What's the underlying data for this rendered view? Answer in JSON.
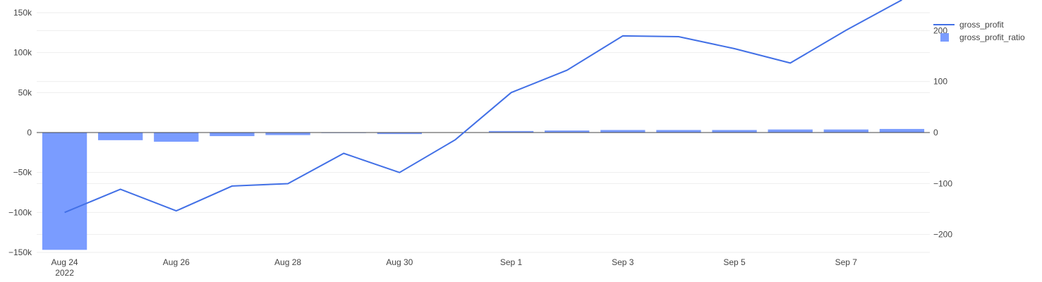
{
  "chart_data": {
    "type": "bar+line",
    "x": [
      "2022-08-24",
      "2022-08-25",
      "2022-08-26",
      "2022-08-27",
      "2022-08-28",
      "2022-08-29",
      "2022-08-30",
      "2022-08-31",
      "2022-09-01",
      "2022-09-02",
      "2022-09-03",
      "2022-09-04",
      "2022-09-05",
      "2022-09-06",
      "2022-09-07",
      "2022-09-08"
    ],
    "x_ticks": [
      {
        "date": "2022-08-24",
        "label": "Aug 24",
        "sublabel": "2022"
      },
      {
        "date": "2022-08-26",
        "label": "Aug 26",
        "sublabel": ""
      },
      {
        "date": "2022-08-28",
        "label": "Aug 28",
        "sublabel": ""
      },
      {
        "date": "2022-08-30",
        "label": "Aug 30",
        "sublabel": ""
      },
      {
        "date": "2022-09-01",
        "label": "Sep 1",
        "sublabel": ""
      },
      {
        "date": "2022-09-03",
        "label": "Sep 3",
        "sublabel": ""
      },
      {
        "date": "2022-09-05",
        "label": "Sep 5",
        "sublabel": ""
      },
      {
        "date": "2022-09-07",
        "label": "Sep 7",
        "sublabel": ""
      }
    ],
    "x_range": [
      "2022-08-23T12:00",
      "2022-09-08T12:00"
    ],
    "y_left": {
      "range": [
        -150000,
        150000
      ],
      "ticks": [
        {
          "value": 150000,
          "label": "150k"
        },
        {
          "value": 100000,
          "label": "100k"
        },
        {
          "value": 50000,
          "label": "50k"
        },
        {
          "value": 0,
          "label": "0"
        },
        {
          "value": -50000,
          "label": "−50k"
        },
        {
          "value": -100000,
          "label": "−100k"
        },
        {
          "value": -150000,
          "label": "−150k"
        }
      ]
    },
    "y_right": {
      "range": [
        -235,
        235
      ],
      "ticks": [
        {
          "value": 200,
          "label": "200"
        },
        {
          "value": 100,
          "label": "100"
        },
        {
          "value": 0,
          "label": "0"
        },
        {
          "value": -100,
          "label": "−100"
        },
        {
          "value": -200,
          "label": "−200"
        }
      ]
    },
    "series": [
      {
        "name": "gross_profit",
        "type": "line",
        "axis": "left",
        "color": "#4270e6",
        "values": [
          -100000,
          -71000,
          -98000,
          -67000,
          -64000,
          -26000,
          -50000,
          -9000,
          50000,
          78000,
          121000,
          120000,
          105000,
          87000,
          128000,
          166000
        ]
      },
      {
        "name": "gross_profit_ratio",
        "type": "bar",
        "axis": "right",
        "color": "#7a9cff",
        "values": [
          -230,
          -15,
          -18,
          -7,
          -5,
          -1,
          -3,
          0,
          3,
          4,
          5,
          5,
          5,
          6,
          6,
          7
        ]
      }
    ],
    "legend_position": "top-right",
    "grid": true
  }
}
